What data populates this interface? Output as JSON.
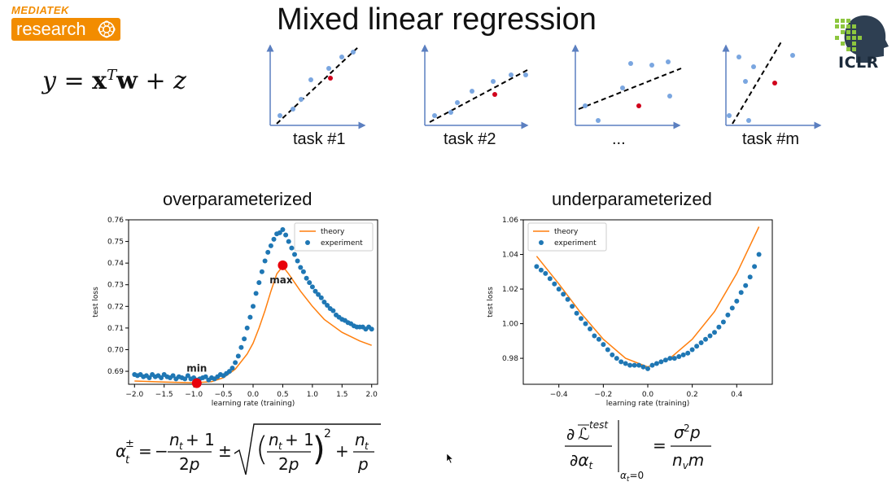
{
  "logo": {
    "brand": "MEDIATEK",
    "name": "research"
  },
  "title": "Mixed linear regression",
  "iclr": {
    "text": "ICLR"
  },
  "model_equation": "y = xᵀw + z",
  "tasks": [
    {
      "label": "task #1"
    },
    {
      "label": "task #2"
    },
    {
      "label": "..."
    },
    {
      "label": "task #m"
    }
  ],
  "left_panel": {
    "subtitle": "overparameterized",
    "formula": "αₜ± = −(nₜ+1)/(2p) ± √(((nₜ+1)/(2p))² + nₜ/p)"
  },
  "right_panel": {
    "subtitle": "underparameterized",
    "formula": "∂L̄ᵗᵉˢᵗ/∂αₜ |αₜ=0 = σ²p/(nᵥm)"
  },
  "colors": {
    "theory": "#ff7f0e",
    "experiment": "#1f77b4",
    "marker": "#e8000b",
    "dot": "#7aa6e0"
  },
  "chart_data": [
    {
      "type": "scatter",
      "title": "",
      "xlabel": "learning rate (training)",
      "ylabel": "test loss",
      "xlim": [
        -2.1,
        2.1
      ],
      "ylim": [
        0.684,
        0.76
      ],
      "xticks": [
        -2.0,
        -1.5,
        -1.0,
        -0.5,
        0.0,
        0.5,
        1.0,
        1.5,
        2.0
      ],
      "yticks": [
        0.69,
        0.7,
        0.71,
        0.72,
        0.73,
        0.74,
        0.75,
        0.76
      ],
      "xtick_labels": [
        "−2.0",
        "−1.5",
        "−1.0",
        "−0.5",
        "0.0",
        "0.5",
        "1.0",
        "1.5",
        "2.0"
      ],
      "ytick_labels": [
        "0.69",
        "0.70",
        "0.71",
        "0.72",
        "0.73",
        "0.74",
        "0.75",
        "0.76"
      ],
      "legend": {
        "position": "top-right",
        "entries": [
          "theory",
          "experiment"
        ]
      },
      "annotations": [
        {
          "text": "min",
          "x": -0.95,
          "y": 0.6845
        },
        {
          "text": "max",
          "x": 0.5,
          "y": 0.739
        }
      ],
      "series": [
        {
          "name": "theory",
          "kind": "line",
          "x": [
            -2.0,
            -1.5,
            -1.0,
            -0.7,
            -0.5,
            -0.3,
            -0.1,
            0.0,
            0.1,
            0.2,
            0.3,
            0.4,
            0.5,
            0.6,
            0.8,
            1.0,
            1.2,
            1.5,
            1.8,
            2.0
          ],
          "y": [
            0.6855,
            0.685,
            0.6847,
            0.6852,
            0.687,
            0.691,
            0.698,
            0.703,
            0.71,
            0.718,
            0.727,
            0.735,
            0.7385,
            0.735,
            0.727,
            0.72,
            0.714,
            0.708,
            0.704,
            0.702
          ]
        },
        {
          "name": "experiment",
          "kind": "scatter",
          "x": [
            -2.0,
            -1.95,
            -1.9,
            -1.85,
            -1.8,
            -1.75,
            -1.7,
            -1.65,
            -1.6,
            -1.55,
            -1.5,
            -1.45,
            -1.4,
            -1.35,
            -1.3,
            -1.25,
            -1.2,
            -1.15,
            -1.1,
            -1.05,
            -1.0,
            -0.95,
            -0.9,
            -0.85,
            -0.8,
            -0.75,
            -0.7,
            -0.65,
            -0.6,
            -0.55,
            -0.5,
            -0.45,
            -0.4,
            -0.35,
            -0.3,
            -0.25,
            -0.2,
            -0.15,
            -0.1,
            -0.05,
            0.0,
            0.05,
            0.1,
            0.15,
            0.2,
            0.25,
            0.3,
            0.35,
            0.4,
            0.45,
            0.5,
            0.55,
            0.6,
            0.65,
            0.7,
            0.75,
            0.8,
            0.85,
            0.9,
            0.95,
            1.0,
            1.05,
            1.1,
            1.15,
            1.2,
            1.25,
            1.3,
            1.35,
            1.4,
            1.45,
            1.5,
            1.55,
            1.6,
            1.65,
            1.7,
            1.75,
            1.8,
            1.85,
            1.9,
            1.95,
            2.0
          ],
          "y": [
            0.6885,
            0.688,
            0.6885,
            0.6875,
            0.688,
            0.687,
            0.6885,
            0.6875,
            0.688,
            0.687,
            0.6885,
            0.6875,
            0.687,
            0.688,
            0.6865,
            0.6875,
            0.687,
            0.6865,
            0.688,
            0.6865,
            0.687,
            0.686,
            0.6865,
            0.687,
            0.6875,
            0.686,
            0.687,
            0.6865,
            0.6875,
            0.6885,
            0.688,
            0.689,
            0.69,
            0.6915,
            0.694,
            0.697,
            0.701,
            0.705,
            0.71,
            0.715,
            0.72,
            0.726,
            0.731,
            0.736,
            0.741,
            0.745,
            0.748,
            0.751,
            0.7535,
            0.754,
            0.7555,
            0.753,
            0.75,
            0.747,
            0.744,
            0.741,
            0.738,
            0.736,
            0.733,
            0.731,
            0.729,
            0.727,
            0.7255,
            0.724,
            0.722,
            0.7205,
            0.719,
            0.718,
            0.716,
            0.715,
            0.714,
            0.7135,
            0.7125,
            0.712,
            0.711,
            0.7105,
            0.7105,
            0.7105,
            0.7095,
            0.7105,
            0.7095
          ]
        },
        {
          "name": "min",
          "kind": "marker",
          "x": [
            -0.95
          ],
          "y": [
            0.6845
          ]
        },
        {
          "name": "max",
          "kind": "marker",
          "x": [
            0.5
          ],
          "y": [
            0.739
          ]
        }
      ]
    },
    {
      "type": "scatter",
      "title": "",
      "xlabel": "learning rate (training)",
      "ylabel": "test loss",
      "xlim": [
        -0.56,
        0.56
      ],
      "ylim": [
        0.965,
        1.06
      ],
      "xticks": [
        -0.4,
        -0.2,
        0.0,
        0.2,
        0.4
      ],
      "yticks": [
        0.98,
        1.0,
        1.02,
        1.04,
        1.06
      ],
      "xtick_labels": [
        "−0.4",
        "−0.2",
        "0.0",
        "0.2",
        "0.4"
      ],
      "ytick_labels": [
        "0.98",
        "1.00",
        "1.02",
        "1.04",
        "1.06"
      ],
      "legend": {
        "position": "top-left",
        "entries": [
          "theory",
          "experiment"
        ]
      },
      "series": [
        {
          "name": "theory",
          "kind": "line",
          "x": [
            -0.5,
            -0.4,
            -0.3,
            -0.2,
            -0.1,
            0.0,
            0.1,
            0.2,
            0.3,
            0.4,
            0.5
          ],
          "y": [
            1.039,
            1.023,
            1.006,
            0.991,
            0.98,
            0.975,
            0.98,
            0.991,
            1.007,
            1.029,
            1.056
          ]
        },
        {
          "name": "experiment",
          "kind": "scatter",
          "x": [
            -0.5,
            -0.48,
            -0.46,
            -0.44,
            -0.42,
            -0.4,
            -0.38,
            -0.36,
            -0.34,
            -0.32,
            -0.3,
            -0.28,
            -0.26,
            -0.24,
            -0.22,
            -0.2,
            -0.18,
            -0.16,
            -0.14,
            -0.12,
            -0.1,
            -0.08,
            -0.06,
            -0.04,
            -0.02,
            0.0,
            0.02,
            0.04,
            0.06,
            0.08,
            0.1,
            0.12,
            0.14,
            0.16,
            0.18,
            0.2,
            0.22,
            0.24,
            0.26,
            0.28,
            0.3,
            0.32,
            0.34,
            0.36,
            0.38,
            0.4,
            0.42,
            0.44,
            0.46,
            0.48,
            0.5
          ],
          "y": [
            1.033,
            1.031,
            1.029,
            1.026,
            1.023,
            1.02,
            1.017,
            1.014,
            1.01,
            1.006,
            1.003,
            1.0,
            0.997,
            0.993,
            0.991,
            0.988,
            0.985,
            0.982,
            0.98,
            0.978,
            0.977,
            0.976,
            0.976,
            0.976,
            0.975,
            0.974,
            0.976,
            0.977,
            0.978,
            0.979,
            0.98,
            0.98,
            0.981,
            0.982,
            0.983,
            0.985,
            0.987,
            0.989,
            0.991,
            0.993,
            0.995,
            0.998,
            1.001,
            1.005,
            1.009,
            1.013,
            1.018,
            1.022,
            1.027,
            1.033,
            1.04
          ]
        }
      ]
    }
  ]
}
